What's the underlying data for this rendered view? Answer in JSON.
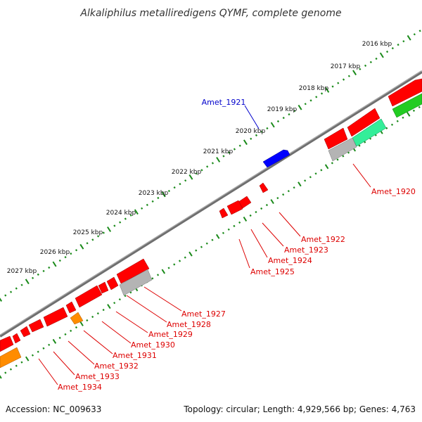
{
  "title": "Alkaliphilus metalliredigens QYMF, complete genome",
  "colors": {
    "forward_gene": "#ff0000",
    "highlight_gene": "#0000ff",
    "orange_gene": "#ff8c00",
    "grey_gene": "#b4b4b4",
    "green_gene": "#22cc22",
    "teal_gene": "#33ee99",
    "backbone": "#6e6e6e",
    "tick_marks": "#1a8a1a",
    "label_red": "#dd0000",
    "label_blue": "#0000cc"
  },
  "scale_marks": [
    "2016 kbp",
    "2017 kbp",
    "2018 kbp",
    "2019 kbp",
    "2020 kbp",
    "2021 kbp",
    "2022 kbp",
    "2023 kbp",
    "2024 kbp",
    "2025 kbp",
    "2026 kbp",
    "2027 kbp"
  ],
  "gene_labels": {
    "blue": [
      "Amet_1921"
    ],
    "red": [
      "Amet_1920",
      "Amet_1922",
      "Amet_1923",
      "Amet_1924",
      "Amet_1925",
      "Amet_1927",
      "Amet_1928",
      "Amet_1929",
      "Amet_1930",
      "Amet_1931",
      "Amet_1932",
      "Amet_1933",
      "Amet_1934"
    ]
  },
  "footer": {
    "accession": "Accession: NC_009633",
    "summary": "Topology: circular; Length: 4,929,566 bp; Genes: 4,763"
  }
}
